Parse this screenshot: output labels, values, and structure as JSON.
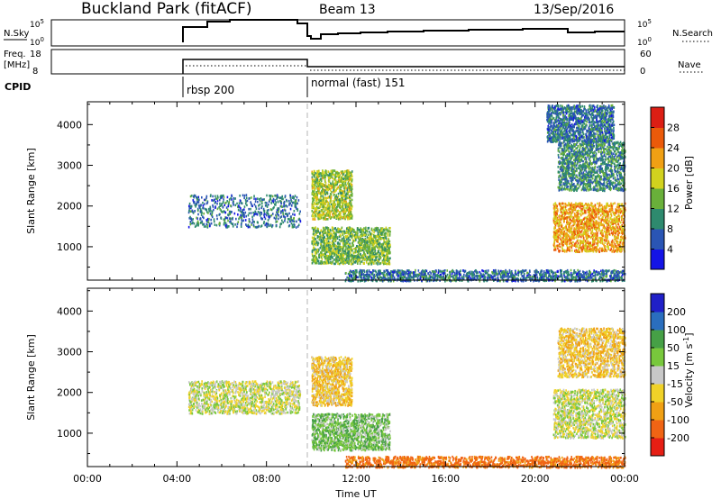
{
  "header": {
    "title": "Buckland Park (fitACF)",
    "beam": "Beam 13",
    "date": "13/Sep/2016"
  },
  "top_panels": {
    "nsky_label": "N.Sky",
    "nsky_ticks": [
      "10^5",
      "10^0"
    ],
    "nsearch_label": "N.Search",
    "nsearch_ticks": [
      "10^5",
      "10^0"
    ],
    "freq_label_1": "Freq.",
    "freq_label_2": "[MHz]",
    "freq_ticks": [
      "18",
      "8"
    ],
    "nave_label": "Nave",
    "nave_ticks": [
      "60",
      "0"
    ],
    "cpid_label": "CPID",
    "modes": [
      {
        "label": "rbsp 200",
        "start_hour": 4.6
      },
      {
        "label": "normal (fast) 151",
        "start_hour": 10.0
      }
    ]
  },
  "chart_data": [
    {
      "type": "heatmap",
      "title": "",
      "xlabel": "Time UT",
      "ylabel": "Slant Range [km]",
      "xlim": [
        0,
        24
      ],
      "ylim": [
        180,
        4560
      ],
      "x_ticks": [
        "00:00",
        "04:00",
        "08:00",
        "12:00",
        "16:00",
        "20:00",
        "00:00"
      ],
      "y_ticks": [
        1000,
        2000,
        3000,
        4000
      ],
      "colorbar": {
        "label": "Power [dB]",
        "ticks": [
          4,
          8,
          12,
          16,
          20,
          24,
          28
        ],
        "range": [
          0,
          32
        ],
        "colors": [
          "#1414e6",
          "#2a55b4",
          "#2e8a6e",
          "#69b03a",
          "#d2d21e",
          "#f0a014",
          "#eb5a0a",
          "#dc1e14"
        ]
      },
      "clusters": [
        {
          "t": [
            4.5,
            9.5
          ],
          "r": [
            1500,
            2300
          ],
          "value": 8,
          "note": "sparse patches"
        },
        {
          "t": [
            10.0,
            11.8
          ],
          "r": [
            1700,
            2900
          ],
          "value": 16
        },
        {
          "t": [
            10.0,
            13.5
          ],
          "r": [
            600,
            1500
          ],
          "value": 14
        },
        {
          "t": [
            11.5,
            24.0
          ],
          "r": [
            180,
            450
          ],
          "value": 8
        },
        {
          "t": [
            21.0,
            24.0
          ],
          "r": [
            2400,
            3600
          ],
          "value": 10
        },
        {
          "t": [
            20.8,
            24.0
          ],
          "r": [
            900,
            2100
          ],
          "value": 22
        },
        {
          "t": [
            20.5,
            23.5
          ],
          "r": [
            3600,
            4500
          ],
          "value": 8
        }
      ]
    },
    {
      "type": "heatmap",
      "title": "",
      "xlabel": "Time UT",
      "ylabel": "Slant Range [km]",
      "xlim": [
        0,
        24
      ],
      "ylim": [
        180,
        4560
      ],
      "x_ticks": [
        "00:00",
        "04:00",
        "08:00",
        "12:00",
        "16:00",
        "20:00",
        "00:00"
      ],
      "y_ticks": [
        1000,
        2000,
        3000,
        4000
      ],
      "colorbar": {
        "label": "Velocity [m s^-1]",
        "ticks": [
          200,
          100,
          50,
          15,
          -15,
          -50,
          -100,
          -200
        ],
        "colors": [
          "#2020c8",
          "#2a6ebe",
          "#46a046",
          "#78c83c",
          "#c8c8c8",
          "#f0d228",
          "#f0a014",
          "#f06414",
          "#e61e14"
        ]
      },
      "clusters": [
        {
          "t": [
            4.5,
            9.5
          ],
          "r": [
            1500,
            2300
          ],
          "value": 0
        },
        {
          "t": [
            10.0,
            11.8
          ],
          "r": [
            1700,
            2900
          ],
          "value": -40
        },
        {
          "t": [
            10.0,
            13.5
          ],
          "r": [
            600,
            1500
          ],
          "value": 40
        },
        {
          "t": [
            11.5,
            24.0
          ],
          "r": [
            180,
            450
          ],
          "value": -120
        },
        {
          "t": [
            21.0,
            24.0
          ],
          "r": [
            2400,
            3600
          ],
          "value": -40
        },
        {
          "t": [
            20.8,
            24.0
          ],
          "r": [
            900,
            2100
          ],
          "value": 0
        }
      ]
    }
  ]
}
